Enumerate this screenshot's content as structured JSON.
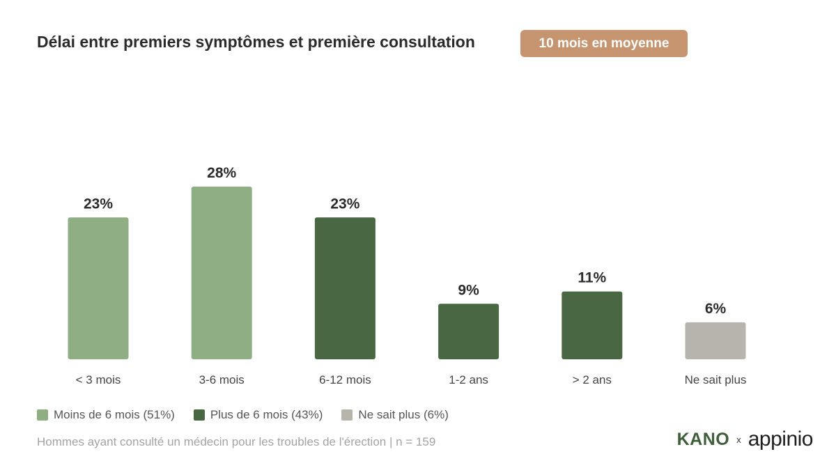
{
  "header": {
    "title": "Délai entre premiers symptômes et première consultation",
    "badge": "10 mois en moyenne"
  },
  "colors": {
    "light_green": "#8fae84",
    "dark_green": "#4a6743",
    "grey": "#b7b4ae",
    "badge": "#c69570"
  },
  "chart_data": {
    "type": "bar",
    "categories": [
      "< 3 mois",
      "3-6 mois",
      "6-12 mois",
      "1-2 ans",
      "> 2 ans",
      "Ne sait plus"
    ],
    "values": [
      23,
      28,
      23,
      9,
      11,
      6
    ],
    "value_labels": [
      "23%",
      "28%",
      "23%",
      "9%",
      "11%",
      "6%"
    ],
    "groups": [
      "Moins de 6 mois",
      "Moins de 6 mois",
      "Plus de 6 mois",
      "Plus de 6 mois",
      "Plus de 6 mois",
      "Ne sait plus"
    ],
    "group_colors": {
      "Moins de 6 mois": "#8fae84",
      "Plus de 6 mois": "#4a6743",
      "Ne sait plus": "#b7b4ae"
    },
    "unit": "%",
    "ylim": [
      0,
      28
    ],
    "grid": false,
    "legend_placement": "bottom-left",
    "title": "Délai entre premiers symptômes et première consultation",
    "xlabel": "",
    "ylabel": ""
  },
  "legend": {
    "items": [
      {
        "label": "Moins de 6 mois (51%)",
        "color": "#8fae84"
      },
      {
        "label": "Plus de 6 mois (43%)",
        "color": "#4a6743"
      },
      {
        "label": "Ne sait plus (6%)",
        "color": "#b7b4ae"
      }
    ]
  },
  "footnote": "Hommes ayant consulté un médecin pour les troubles de l'érection | n = 159",
  "logos": {
    "kano": "KANO",
    "separator": "x",
    "appinio": "appinio"
  }
}
